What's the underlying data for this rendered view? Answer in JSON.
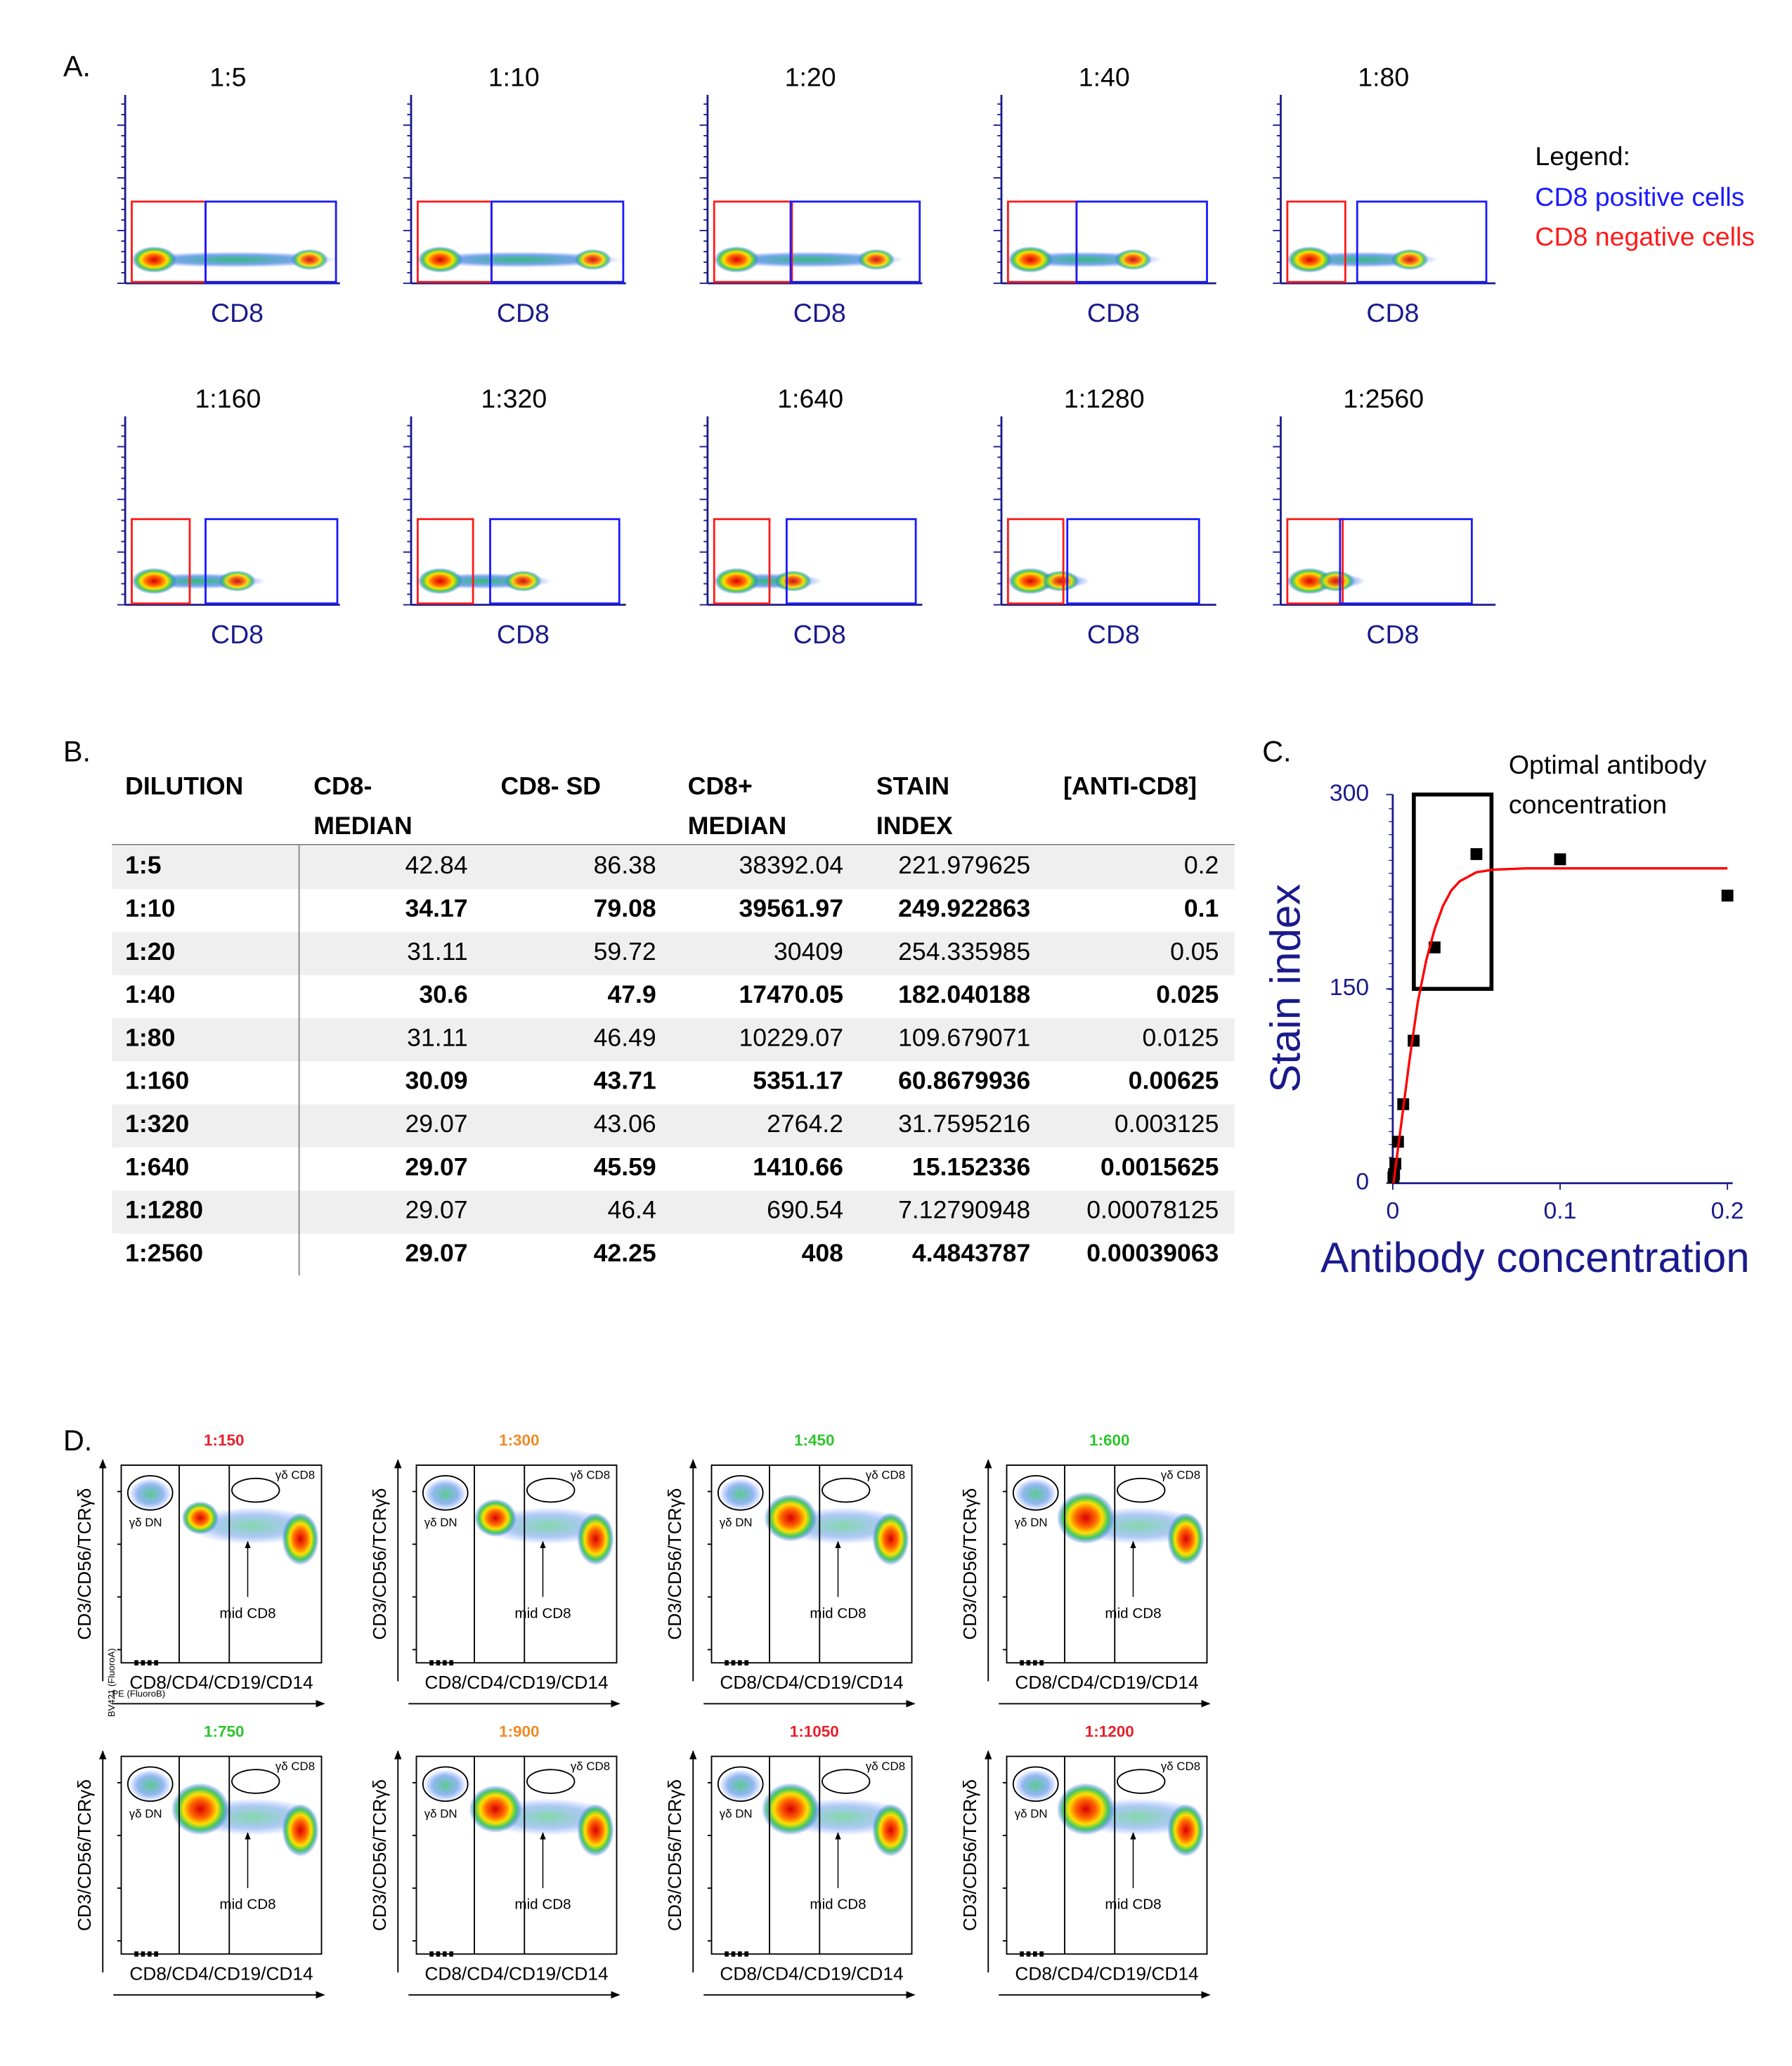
{
  "panel_a": {
    "label": "A.",
    "x_label": "CD8",
    "plots": [
      "1:5",
      "1:10",
      "1:20",
      "1:40",
      "1:80",
      "1:160",
      "1:320",
      "1:640",
      "1:1280",
      "1:2560"
    ],
    "legend": {
      "title": "Legend:",
      "items": [
        {
          "text": "CD8 positive cells",
          "color": "#1a1aff"
        },
        {
          "text": "CD8 negative cells",
          "color": "#ff1a1a"
        }
      ]
    }
  },
  "panel_b": {
    "label": "B.",
    "table": {
      "headers": [
        [
          "DILUTION"
        ],
        [
          "CD8-",
          "MEDIAN"
        ],
        [
          "CD8- SD"
        ],
        [
          "CD8+",
          "MEDIAN"
        ],
        [
          "STAIN",
          "INDEX"
        ],
        [
          "[ANTI-CD8]"
        ]
      ],
      "rows": [
        [
          "1:5",
          42.84,
          86.38,
          38392.04,
          221.979625,
          0.2
        ],
        [
          "1:10",
          34.17,
          79.08,
          39561.97,
          249.922863,
          0.1
        ],
        [
          "1:20",
          31.11,
          59.72,
          30409,
          254.335985,
          0.05
        ],
        [
          "1:40",
          30.6,
          47.9,
          17470.05,
          182.040188,
          0.025
        ],
        [
          "1:80",
          31.11,
          46.49,
          10229.07,
          109.679071,
          0.0125
        ],
        [
          "1:160",
          30.09,
          43.71,
          5351.17,
          60.8679936,
          0.00625
        ],
        [
          "1:320",
          29.07,
          43.06,
          2764.2,
          31.7595216,
          0.003125
        ],
        [
          "1:640",
          29.07,
          45.59,
          1410.66,
          15.152336,
          0.0015625
        ],
        [
          "1:1280",
          29.07,
          46.4,
          690.54,
          7.12790948,
          0.00078125
        ],
        [
          "1:2560",
          29.07,
          42.25,
          408,
          4.4843787,
          0.00039063
        ]
      ]
    }
  },
  "panel_c": {
    "label": "C."
  },
  "chart_data": {
    "type": "scatter",
    "y_label": "Stain index",
    "x_label": "Antibody concentration",
    "annotation": [
      "Optimal antibody",
      "concentration"
    ],
    "highlight": {
      "x": [
        0.0126,
        0.059
      ],
      "y": [
        150,
        300
      ]
    },
    "xlim": [
      0,
      0.2
    ],
    "ylim": [
      0,
      300
    ],
    "xticks": [
      0,
      0.1,
      0.2
    ],
    "yticks": [
      0,
      150,
      300
    ],
    "series": [
      {
        "color": "#000000",
        "x": [
          0.2,
          0.1,
          0.05,
          0.025,
          0.0125,
          0.00625,
          0.003125,
          0.0015625,
          0.00078125,
          0.00039063
        ],
        "values": [
          222,
          250,
          254,
          182,
          110,
          61,
          32,
          15,
          7,
          4.5
        ]
      },
      {
        "type": "line",
        "color": "#ff0000",
        "x": [
          0.0004,
          0.005,
          0.01,
          0.015,
          0.02,
          0.025,
          0.03,
          0.035,
          0.04,
          0.05,
          0.06,
          0.08,
          0.1,
          0.15,
          0.2
        ],
        "values": [
          0,
          45,
          95,
          140,
          172,
          196,
          214,
          226,
          233,
          240,
          242,
          243,
          243,
          243,
          243
        ]
      }
    ]
  },
  "panel_d": {
    "label": "D.",
    "y_label": "CD3/CD56/TCRγδ",
    "x_label": "CD8/CD4/CD19/CD14",
    "y_channel": "BV421 (FluoroA)",
    "x_channel": "PE (FluoroB)",
    "gate_labels": {
      "gd_cd8": "γδ CD8",
      "gd_dn": "γδ DN",
      "mid_cd8": "mid CD8"
    },
    "plots": [
      {
        "title": "1:150",
        "color": "#e8202a"
      },
      {
        "title": "1:300",
        "color": "#f08a24"
      },
      {
        "title": "1:450",
        "color": "#2ec52e"
      },
      {
        "title": "1:600",
        "color": "#2ec52e"
      },
      {
        "title": "1:750",
        "color": "#2ec52e"
      },
      {
        "title": "1:900",
        "color": "#f08a24"
      },
      {
        "title": "1:1050",
        "color": "#e8202a"
      },
      {
        "title": "1:1200",
        "color": "#e8202a"
      }
    ]
  }
}
